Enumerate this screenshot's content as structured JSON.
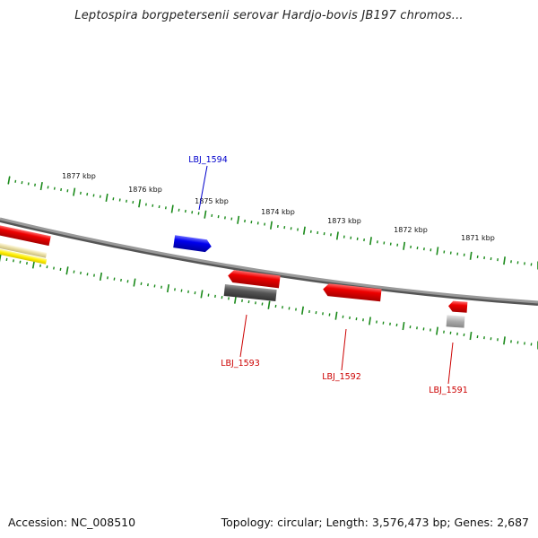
{
  "title": "Leptospira borgpetersenii serovar Hardjo-bovis JB197 chromos...",
  "footer": {
    "accession": "Accession: NC_008510",
    "summary": "Topology: circular; Length: 3,576,473 bp; Genes: 2,687"
  },
  "ruler": {
    "tick_labels": [
      "1877 kbp",
      "1876 kbp",
      "1875 kbp",
      "1874 kbp",
      "1873 kbp",
      "1872 kbp",
      "1871 kbp"
    ]
  },
  "genes": [
    {
      "id": "LBJ_1594",
      "label": "LBJ_1594",
      "strand": "forward",
      "color": "#0000ee",
      "labeled": true
    },
    {
      "id": "LBJ_1593",
      "label": "LBJ_1593",
      "strand": "reverse",
      "color": "#ee0000",
      "labeled": true
    },
    {
      "id": "LBJ_1592",
      "label": "LBJ_1592",
      "strand": "reverse",
      "color": "#ee0000",
      "labeled": true
    },
    {
      "id": "LBJ_1591",
      "label": "LBJ_1591",
      "strand": "reverse",
      "color": "#ee0000",
      "labeled": true
    }
  ],
  "colors": {
    "backbone": "#888888",
    "ticks": "#1a8a1a",
    "forward_label": "#0000cc",
    "reverse_label": "#cc0000",
    "gray_feature": "#555555",
    "light_gray_feature": "#aaaaaa",
    "yellow_feature": "#ffee00",
    "tan_feature": "#e8dca0"
  }
}
